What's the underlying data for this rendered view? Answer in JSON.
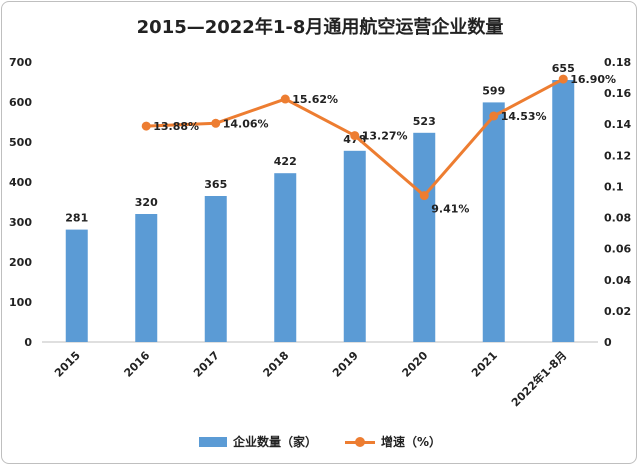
{
  "chart_data": {
    "type": "bar+line",
    "title": "2015—2022年1-8月通用航空运营企业数量",
    "categories": [
      "2015",
      "2016",
      "2017",
      "2018",
      "2019",
      "2020",
      "2021",
      "2022年1-8月"
    ],
    "series": [
      {
        "name": "企业数量（家）",
        "type": "bar",
        "axis": "left",
        "color": "#5b9bd5",
        "values": [
          281,
          320,
          365,
          422,
          478,
          523,
          599,
          655
        ],
        "labels": [
          "281",
          "320",
          "365",
          "422",
          "478",
          "523",
          "599",
          "655"
        ]
      },
      {
        "name": "增速（%）",
        "type": "line",
        "axis": "right",
        "color": "#ed7d31",
        "values": [
          null,
          0.1388,
          0.1406,
          0.1562,
          0.1327,
          0.0941,
          0.1453,
          0.169
        ],
        "labels": [
          null,
          "13.88%",
          "14.06%",
          "15.62%",
          "13.27%",
          "9.41%",
          "14.53%",
          "16.90%"
        ]
      }
    ],
    "y_left": {
      "range": [
        0,
        700
      ],
      "ticks": [
        "0",
        "100",
        "200",
        "300",
        "400",
        "500",
        "600",
        "700"
      ]
    },
    "y_right": {
      "range": [
        0,
        0.18
      ],
      "ticks": [
        "0",
        "0.02",
        "0.04",
        "0.06",
        "0.08",
        "0.1",
        "0.12",
        "0.14",
        "0.16",
        "0.18"
      ]
    },
    "grid": false,
    "legend_position": "bottom"
  }
}
